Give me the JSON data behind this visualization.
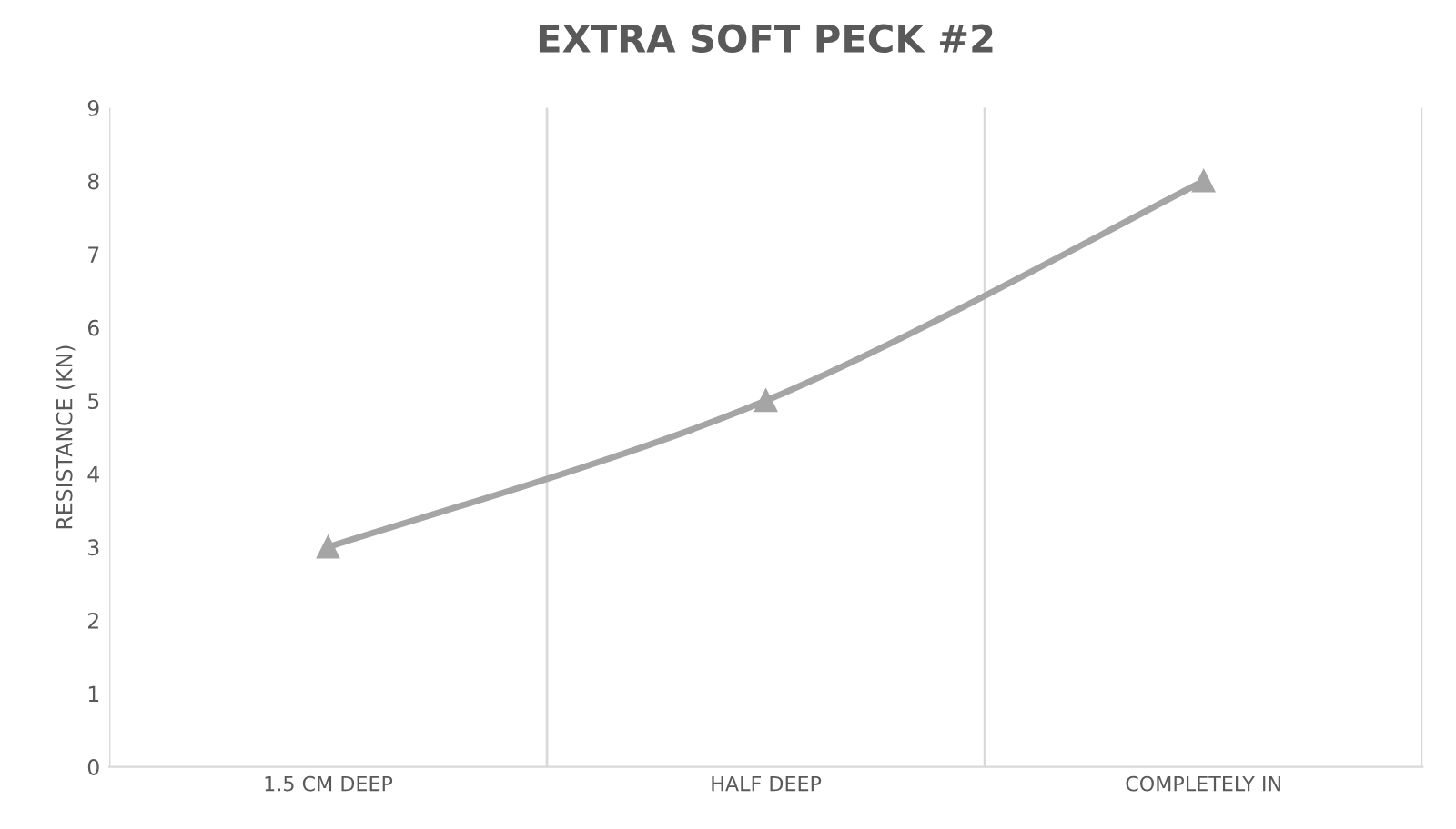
{
  "chart_data": {
    "type": "line",
    "title": "EXTRA SOFT PECK #2",
    "ylabel": "RESISTANCE (KN)",
    "categories": [
      "1.5 CM DEEP",
      "HALF DEEP",
      "COMPLETELY IN"
    ],
    "series": [
      {
        "color": "#a5a5a5",
        "values": [
          3,
          5,
          8
        ]
      }
    ],
    "ylim": [
      0,
      9
    ],
    "yticks": [
      0,
      1,
      2,
      3,
      4,
      5,
      6,
      7,
      8,
      9
    ],
    "grid": "x",
    "marker": "triangle",
    "line_style": "solid",
    "legend": false
  }
}
